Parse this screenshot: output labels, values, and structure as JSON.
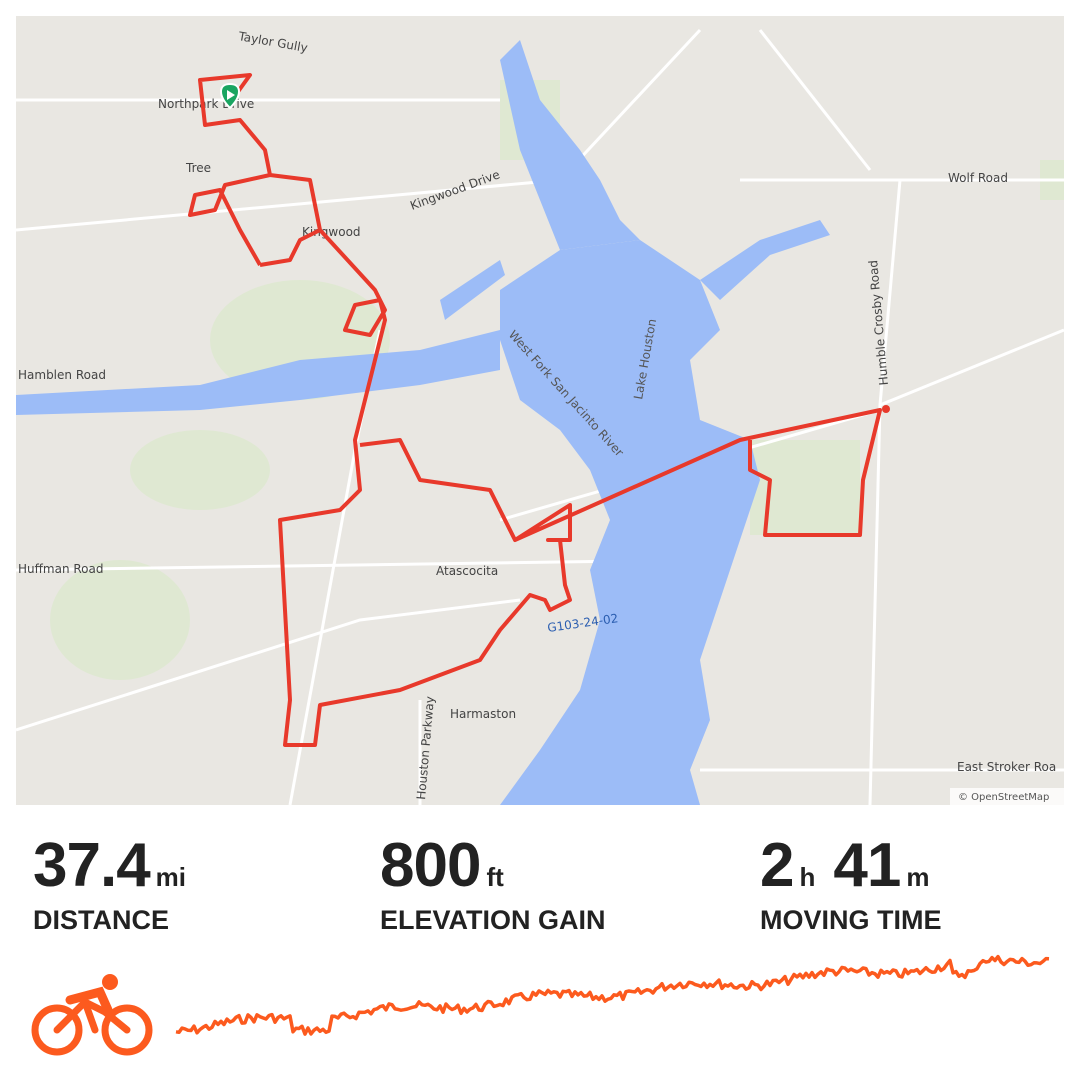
{
  "map": {
    "labels": [
      "Taylor Gully",
      "Northpark Drive",
      "Tree",
      "Kingwood",
      "Kingwood Drive",
      "Wolf Road",
      "Humble Crosby Road",
      "Hamblen Road",
      "West Fork San Jacinto River",
      "Lake Houston",
      "Huffman Road",
      "Atascocita",
      "G103-24-02",
      "Harmaston",
      "Houston Parkway",
      "East Stroker Roa",
      "© OpenStreetMap"
    ]
  },
  "stats": [
    {
      "value": "37.4",
      "unit": "mi",
      "label": "DISTANCE"
    },
    {
      "value": "800",
      "unit": "ft",
      "label": "ELEVATION GAIN"
    },
    {
      "hours": "2",
      "hours_unit": "h",
      "minutes": "41",
      "minutes_unit": "m",
      "label": "MOVING TIME"
    }
  ]
}
